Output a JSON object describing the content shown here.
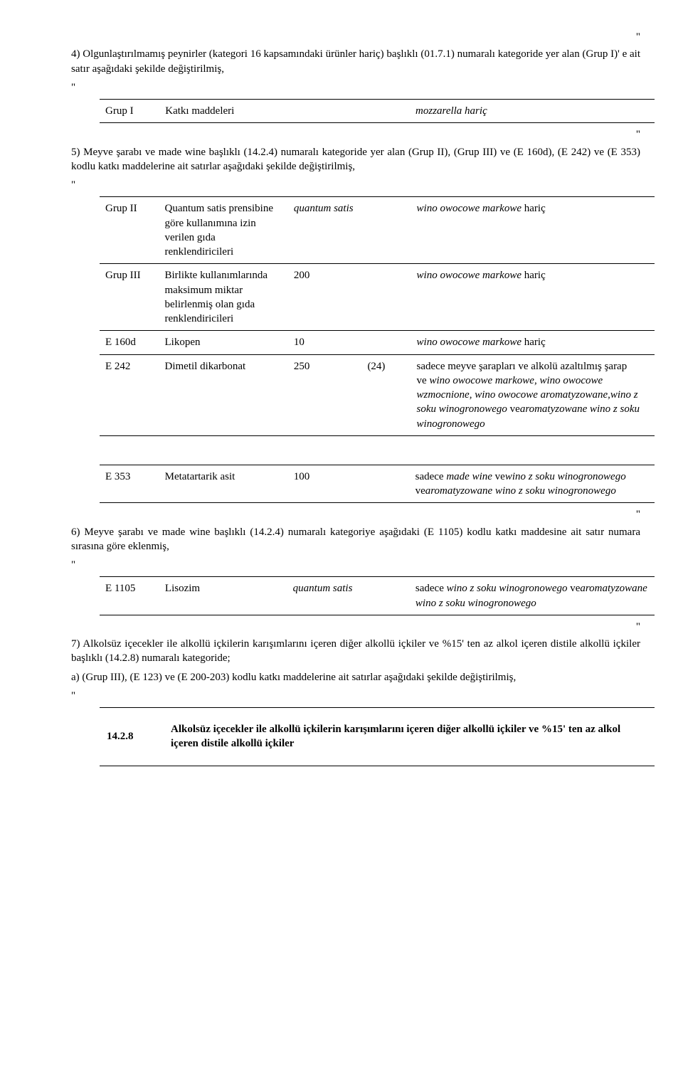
{
  "top_quote": "\"",
  "p1": "4) Olgunlaştırılmamış peynirler (kategori 16 kapsamındaki ürünler hariç) başlıklı (01.7.1) numaralı kategoride yer alan (Grup I)' e ait satır aşağıdaki şekilde değiştirilmiş,",
  "q_open": "\"",
  "t1": {
    "c1": "Grup I",
    "c2": "Katkı maddeleri",
    "c5": "mozzarella hariç"
  },
  "q_close1": "\"",
  "p2": "5) Meyve şarabı ve made wine başlıklı (14.2.4) numaralı kategoride yer alan (Grup II), (Grup III) ve (E 160d), (E 242) ve (E 353) kodlu katkı maddelerine ait satırlar aşağıdaki şekilde değiştirilmiş,",
  "t2": {
    "rows": [
      {
        "c1": "Grup II",
        "c2": "Quantum satis prensibine göre kullanımına izin verilen gıda renklendiricileri",
        "c3": "quantum satis",
        "c3_ital": true,
        "c4": "",
        "c5": "wino owocowe markowe hariç",
        "c5_html": "<em>wino owocowe markowe</em> hariç"
      },
      {
        "c1": "Grup III",
        "c2": "Birlikte kullanımlarında maksimum miktar belirlenmiş olan gıda renklendiricileri",
        "c3": "200",
        "c4": "",
        "c5_html": "<em>wino owocowe markowe</em> hariç"
      },
      {
        "c1": "E 160d",
        "c2": "Likopen",
        "c3": "10",
        "c4": "",
        "c5_html": "<em>wino owocowe markowe</em> hariç"
      },
      {
        "c1": "E 242",
        "c2": "Dimetil dikarbonat",
        "c3": "250",
        "c4": "(24)",
        "c5_html": "sadece meyve şarapları ve alkolü azaltılmış şarap<br>ve <em>wino owocowe markowe</em>, <em>wino owocowe wzmocnione</em>, <em>wino owocowe aromatyzowane</em>,<em>wino z soku winogronowego</em> ve<em>aromatyzowane wino z soku winogronowego</em>"
      }
    ]
  },
  "t3": {
    "c1": "E 353",
    "c2": "Metatartarik asit",
    "c3": "100",
    "c4": "",
    "c5_html": "sadece <em>made wine</em> ve<em>wino z soku winogronowego</em> ve<em>aromatyzowane wino z soku winogronowego</em>"
  },
  "q_close2": "\"",
  "p3": "6) Meyve şarabı ve made wine başlıklı (14.2.4) numaralı kategoriye aşağıdaki (E 1105) kodlu katkı maddesine ait satır numara sırasına göre eklenmiş,",
  "t4": {
    "c1": "E 1105",
    "c2": "Lisozim",
    "c3": "quantum satis",
    "c3_ital": true,
    "c4": "",
    "c5_html": "sadece <em>wino z soku winogronowego</em> ve<em>aromatyzowane wino z soku winogronowego</em>"
  },
  "q_close3": "\"",
  "p4": "7) Alkolsüz içecekler ile alkollü içkilerin karışımlarını içeren diğer alkollü içkiler ve %15' ten az alkol içeren distile alkollü içkiler başlıklı (14.2.8) numaralı kategoride;",
  "p4a": "a) (Grup III), (E 123) ve (E 200-203) kodlu katkı maddelerine ait satırlar aşağıdaki şekilde değiştirilmiş,",
  "section": {
    "num": "14.2.8",
    "text": "Alkolsüz içecekler ile alkollü içkilerin karışımlarını içeren diğer alkollü içkiler ve %15' ten az alkol içeren distile alkollü içkiler"
  }
}
